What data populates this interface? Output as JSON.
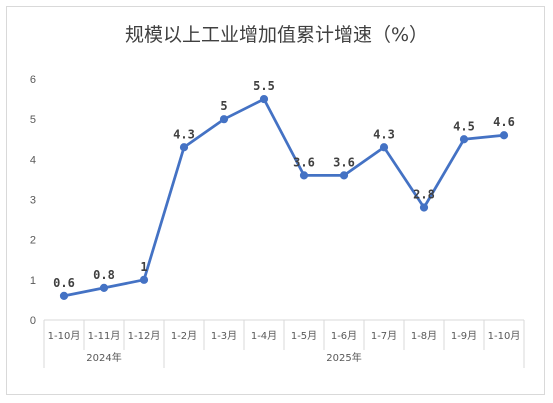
{
  "chart_data": {
    "type": "line",
    "title": "规模以上工业增加值累计增速（%）",
    "xlabel": "",
    "ylabel": "",
    "ylim": [
      0,
      6
    ],
    "yticks": [
      "0",
      "1",
      "2",
      "3",
      "4",
      "5",
      "6"
    ],
    "grid": false,
    "legend": "none",
    "categories": [
      "1-10月",
      "1-11月",
      "1-12月",
      "1-2月",
      "1-3月",
      "1-4月",
      "1-5月",
      "1-6月",
      "1-7月",
      "1-8月",
      "1-9月",
      "1-10月"
    ],
    "groups": [
      {
        "label": "2024年",
        "count": 3
      },
      {
        "label": "2025年",
        "count": 9
      }
    ],
    "values": [
      0.6,
      0.8,
      1,
      4.3,
      5,
      5.5,
      3.6,
      3.6,
      4.3,
      2.8,
      4.5,
      4.6
    ],
    "data_labels": [
      "0.6",
      "0.8",
      "1",
      "4.3",
      "5",
      "5.5",
      "3.6",
      "3.6",
      "4.3",
      "2.8",
      "4.5",
      "4.6"
    ],
    "colors": {
      "line": "#4472c4",
      "axis": "#d9d9d9",
      "text": "#595959"
    }
  }
}
